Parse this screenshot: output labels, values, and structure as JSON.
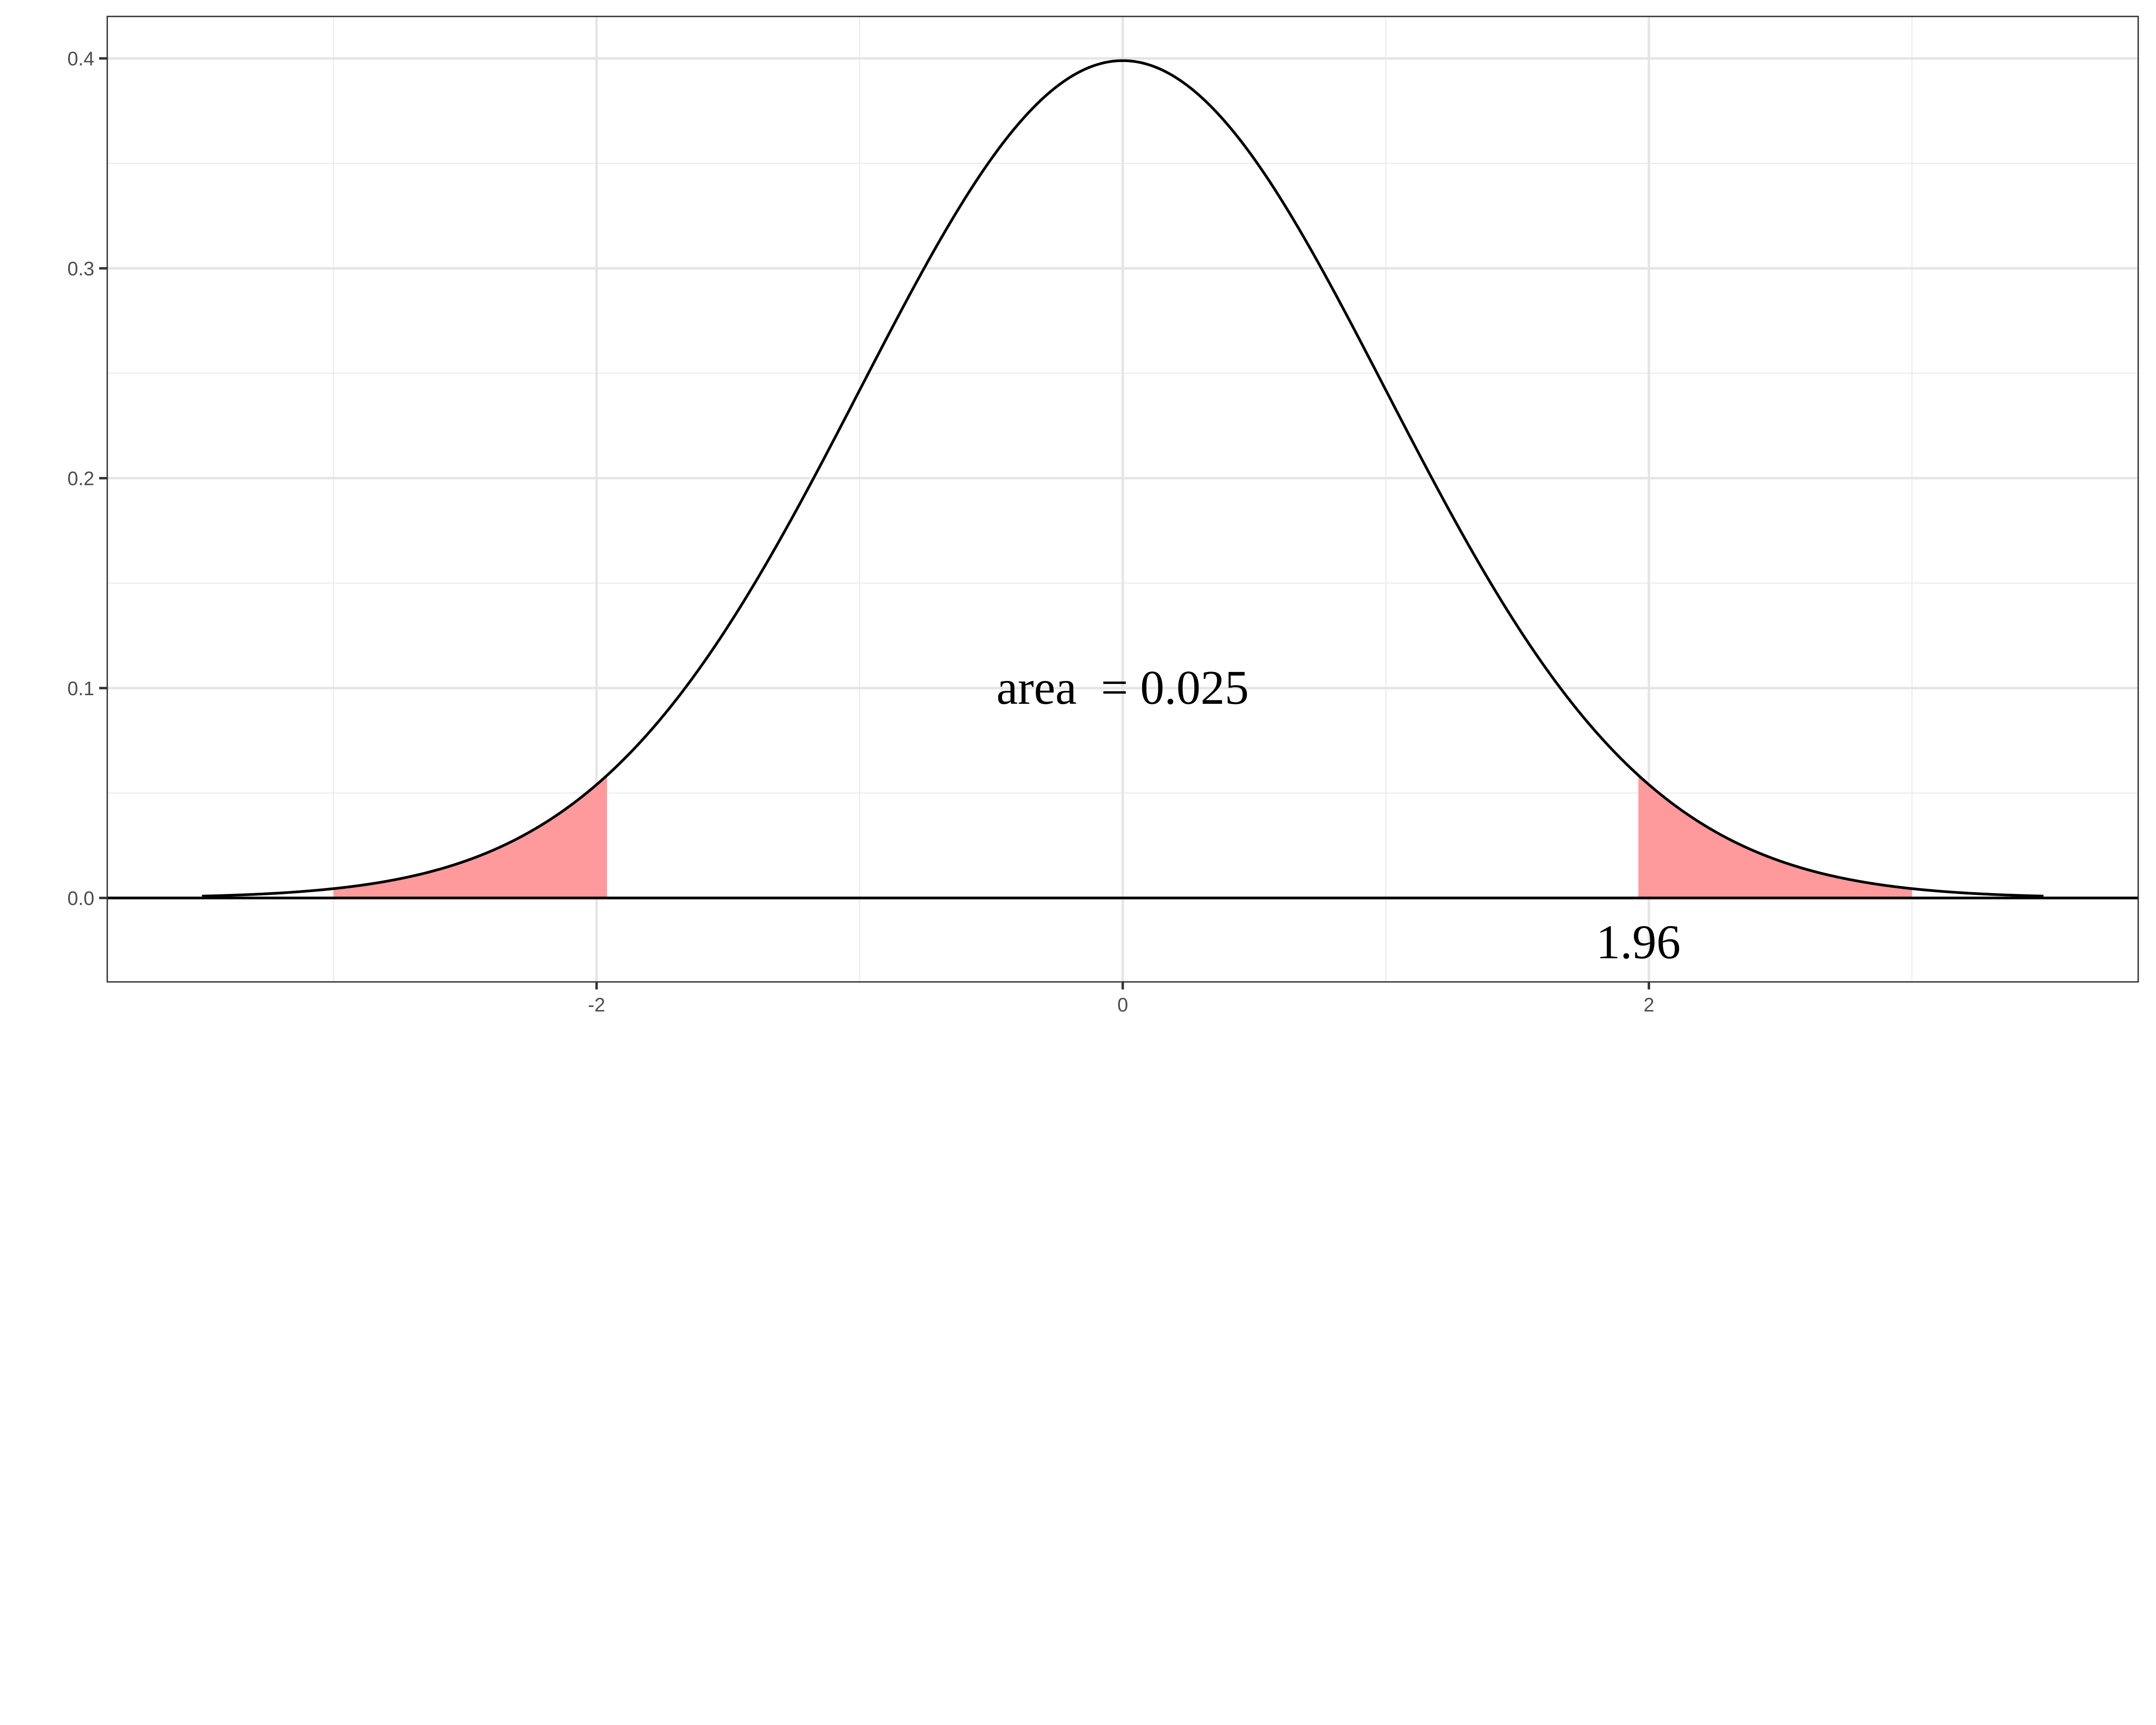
{
  "chart_data": {
    "type": "area",
    "title": "",
    "xlabel": "",
    "ylabel": "",
    "xlim": [
      -3.86,
      3.86
    ],
    "ylim": [
      -0.04,
      0.42
    ],
    "grid": true,
    "x_ticks": [
      "-2",
      "0",
      "2"
    ],
    "x_tick_values": [
      -2,
      0,
      2
    ],
    "y_ticks": [
      "0.0",
      "0.1",
      "0.2",
      "0.3",
      "0.4"
    ],
    "y_tick_values": [
      0,
      0.1,
      0.2,
      0.3,
      0.4
    ],
    "curve": {
      "distribution": "standard normal density",
      "x_range": [
        -3.5,
        3.5
      ],
      "color": "#000000"
    },
    "shaded_regions": [
      {
        "x_range": [
          -3,
          -1.96
        ],
        "color": "#ff9a9c"
      },
      {
        "x_range": [
          1.96,
          3
        ],
        "color": "#ff9a9c"
      }
    ],
    "hline": {
      "y": 0,
      "color": "#000000"
    },
    "annotations": [
      {
        "text": "area  = 0.025",
        "x": 0,
        "y": 0.1
      },
      {
        "text": "1.96",
        "x": 1.96,
        "y": -0.021
      }
    ]
  }
}
